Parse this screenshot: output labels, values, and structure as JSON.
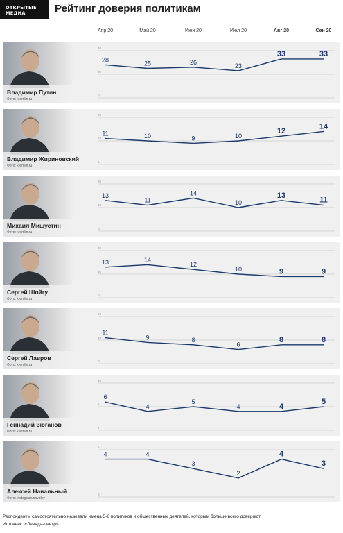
{
  "brand": {
    "logo_line1": "ОТКРЫТЫЕ",
    "logo_line2": "МЕДИА"
  },
  "title": "Рейтинг доверия политикам",
  "footnote": "Респонденты самостоятельно называли имена 5-6 политиков и общественных деятелей, которым больше всего доверяют",
  "source": "Источник: «Левада-центр»",
  "colors": {
    "line": "#1b3a6b",
    "panel": "#f0f0f0",
    "grid": "#bbbbbb",
    "logo_bg": "#111111"
  },
  "months": [
    {
      "label": "Апр 20",
      "bold": false
    },
    {
      "label": "Май 20",
      "bold": false
    },
    {
      "label": "Июн 20",
      "bold": false
    },
    {
      "label": "Июл 20",
      "bold": false
    },
    {
      "label": "Авг 20",
      "bold": true
    },
    {
      "label": "Сен 20",
      "bold": true
    }
  ],
  "panels": [
    {
      "name": "Владимир Путин",
      "credit": "Фото: kremlin.ru",
      "photo_icon": "portrait-photo"
    },
    {
      "name": "Владимир Жириновский",
      "credit": "Фото: kremlin.ru",
      "photo_icon": "portrait-photo"
    },
    {
      "name": "Михаил Мишустин",
      "credit": "Фото: kremlin.ru",
      "photo_icon": "portrait-photo"
    },
    {
      "name": "Сергей Шойгу",
      "credit": "Фото: kremlin.ru",
      "photo_icon": "portrait-photo"
    },
    {
      "name": "Сергей Лавров",
      "credit": "Фото: kremlin.ru",
      "photo_icon": "portrait-photo"
    },
    {
      "name": "Геннадий Зюганов",
      "credit": "Фото: kremlin.ru",
      "photo_icon": "portrait-photo"
    },
    {
      "name": "Алексей Навальный",
      "credit": "Фото: instagram/navalny",
      "photo_icon": "portrait-photo"
    }
  ],
  "chart_data": [
    {
      "type": "line",
      "x": [
        "Апр 20",
        "Май 20",
        "Июн 20",
        "Июл 20",
        "Авг 20",
        "Сен 20"
      ],
      "values": [
        28,
        25,
        26,
        23,
        33,
        33
      ],
      "ylim": [
        0,
        40
      ],
      "yticks": [
        "0",
        "20",
        "40"
      ],
      "grid": true
    },
    {
      "type": "line",
      "x": [
        "Апр 20",
        "Май 20",
        "Июн 20",
        "Июл 20",
        "Авг 20",
        "Сен 20"
      ],
      "values": [
        11,
        10,
        9,
        10,
        12,
        14
      ],
      "ylim": [
        0,
        20
      ],
      "yticks": [
        "0",
        "10",
        "20"
      ],
      "grid": true
    },
    {
      "type": "line",
      "x": [
        "Апр 20",
        "Май 20",
        "Июн 20",
        "Июл 20",
        "Авг 20",
        "Сен 20"
      ],
      "values": [
        13,
        11,
        14,
        10,
        13,
        11
      ],
      "ylim": [
        0,
        20
      ],
      "yticks": [
        "0",
        "10",
        "20"
      ],
      "grid": true
    },
    {
      "type": "line",
      "x": [
        "Апр 20",
        "Май 20",
        "Июн 20",
        "Июл 20",
        "Авг 20",
        "Сен 20"
      ],
      "values": [
        13,
        14,
        12,
        10,
        9,
        9
      ],
      "ylim": [
        0,
        20
      ],
      "yticks": [
        "0",
        "10",
        "20"
      ],
      "grid": true
    },
    {
      "type": "line",
      "x": [
        "Апр 20",
        "Май 20",
        "Июн 20",
        "Июл 20",
        "Авг 20",
        "Сен 20"
      ],
      "values": [
        11,
        9,
        8,
        6,
        8,
        8
      ],
      "ylim": [
        0,
        20
      ],
      "yticks": [
        "0",
        "10",
        "20"
      ],
      "grid": true
    },
    {
      "type": "line",
      "x": [
        "Апр 20",
        "Май 20",
        "Июн 20",
        "Июл 20",
        "Авг 20",
        "Сен 20"
      ],
      "values": [
        6,
        4,
        5,
        4,
        4,
        5
      ],
      "ylim": [
        0,
        10
      ],
      "yticks": [
        "0",
        "5",
        "10"
      ],
      "grid": true
    },
    {
      "type": "line",
      "x": [
        "Апр 20",
        "Май 20",
        "Июн 20",
        "Июл 20",
        "Авг 20",
        "Сен 20"
      ],
      "values": [
        4,
        4,
        3,
        2,
        4,
        3
      ],
      "ylim": [
        0,
        5
      ],
      "yticks": [
        "0",
        "5"
      ],
      "grid": true
    }
  ]
}
